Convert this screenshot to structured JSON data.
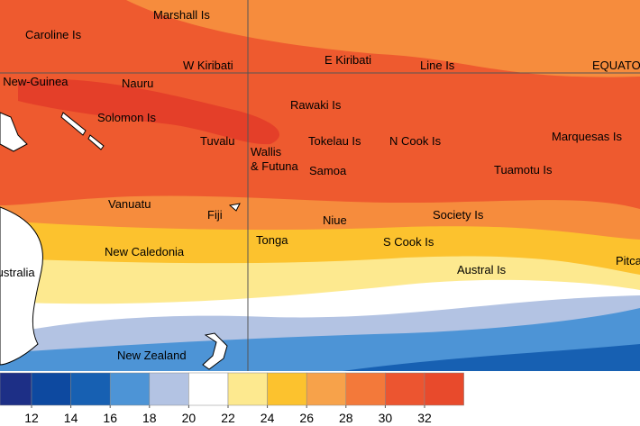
{
  "map": {
    "labels": [
      "Marshall Is",
      "Caroline Is",
      "W Kiribati",
      "E Kiribati",
      "Line Is",
      "EQUATOR",
      "Papua New-Guinea",
      "Nauru",
      "Solomon Is",
      "Rawaki Is",
      "Tuvalu",
      "Wallis",
      "& Futuna",
      "Tokelau Is",
      "N Cook Is",
      "Marquesas Is",
      "Samoa",
      "Tuamotu Is",
      "Vanuatu",
      "Fiji",
      "Niue",
      "Society Is",
      "New Caledonia",
      "Tonga",
      "S Cook Is",
      "Austral Is",
      "Pitcairn",
      "Australia",
      "New Zealand"
    ],
    "colorbar": {
      "ticks": [
        12,
        14,
        16,
        18,
        20,
        22,
        24,
        26,
        28,
        30,
        32
      ],
      "colors": [
        "#1d2f86",
        "#0d49a0",
        "#1760b2",
        "#4d94d6",
        "#b3c3e3",
        "#ffffff",
        "#fde98f",
        "#fcc22e",
        "#f7a24a",
        "#f3793a",
        "#ec5530",
        "#e84a2c"
      ]
    }
  }
}
